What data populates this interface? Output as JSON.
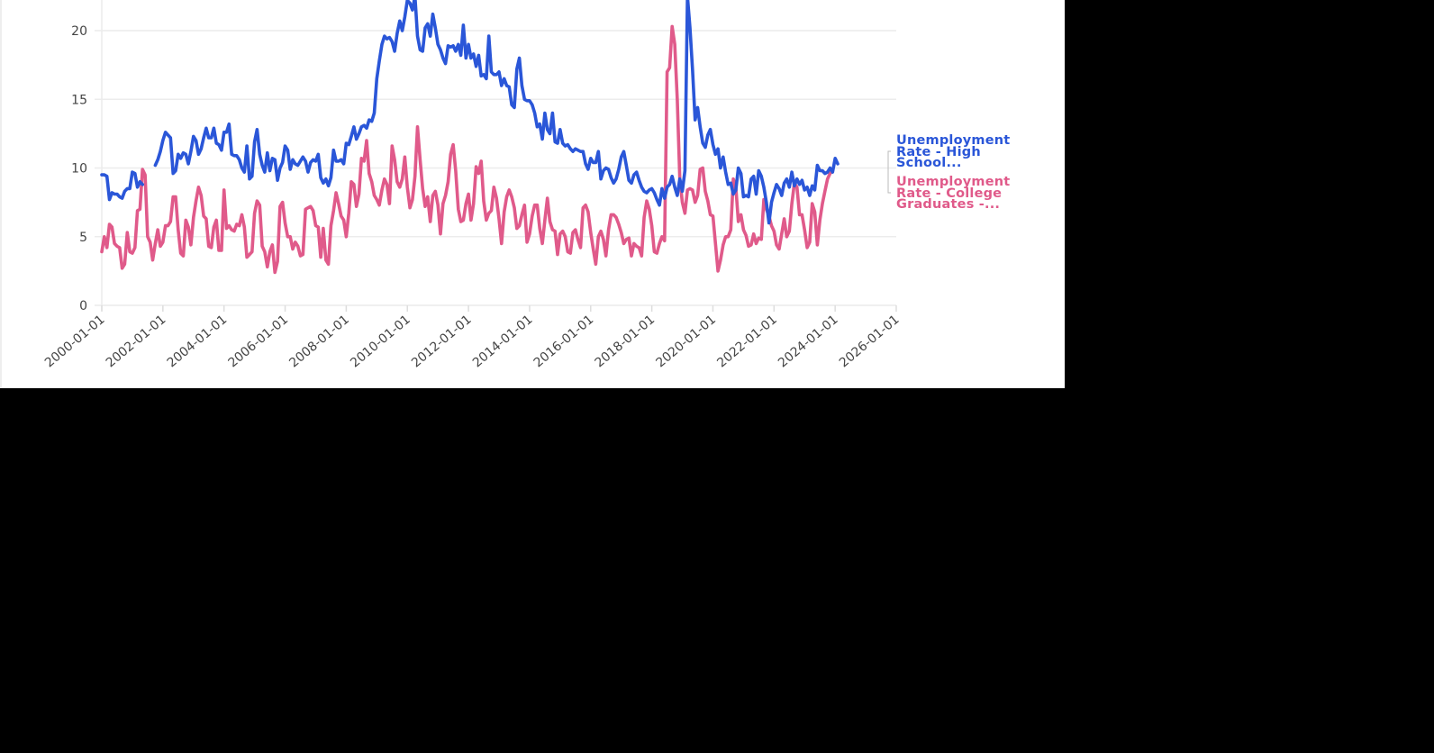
{
  "chart_data": {
    "type": "line",
    "title": "",
    "xlabel": "",
    "ylabel": "",
    "ylim": [
      0,
      22
    ],
    "yticks": [
      0,
      5,
      10,
      15,
      20
    ],
    "xticks": [
      "2000-01-01",
      "2002-01-01",
      "2004-01-01",
      "2006-01-01",
      "2008-01-01",
      "2010-01-01",
      "2012-01-01",
      "2014-01-01",
      "2016-01-01",
      "2018-01-01",
      "2020-01-01",
      "2022-01-01",
      "2024-01-01",
      "2026-01-01"
    ],
    "grid": "horizontal",
    "legend_position": "right-inline",
    "x_start": "2000-01",
    "x_frequency": "monthly",
    "series": [
      {
        "name": "Unemployment Rate - High School...",
        "color": "#2a56d8",
        "values": [
          9.5,
          9.5,
          9.4,
          7.7,
          8.2,
          8.1,
          8.1,
          7.9,
          7.8,
          8.3,
          8.5,
          8.5,
          9.7,
          9.6,
          8.6,
          9.0,
          8.8,
          null,
          null,
          null,
          null,
          10.2,
          10.6,
          11.2,
          12.0,
          12.6,
          12.4,
          12.2,
          9.6,
          9.8,
          11.0,
          10.7,
          11.1,
          11.0,
          10.3,
          11.2,
          12.3,
          12.0,
          11.0,
          11.4,
          12.2,
          12.9,
          12.2,
          12.2,
          12.9,
          11.8,
          11.7,
          11.3,
          12.6,
          12.6,
          13.2,
          11.0,
          10.9,
          10.9,
          10.6,
          10.0,
          9.7,
          11.6,
          9.2,
          9.4,
          11.9,
          12.8,
          11.0,
          10.2,
          9.7,
          11.1,
          9.8,
          10.7,
          10.6,
          9.1,
          10.0,
          10.4,
          11.6,
          11.3,
          9.9,
          10.6,
          10.3,
          10.2,
          10.5,
          10.8,
          10.5,
          9.7,
          10.4,
          10.6,
          10.5,
          11.0,
          9.3,
          8.9,
          9.2,
          8.7,
          9.3,
          11.3,
          10.5,
          10.5,
          10.6,
          10.3,
          11.8,
          11.7,
          12.3,
          13.0,
          12.1,
          12.5,
          13.0,
          13.1,
          12.9,
          13.5,
          13.4,
          14.0,
          16.5,
          17.8,
          19.0,
          19.6,
          19.4,
          19.5,
          19.2,
          18.5,
          19.8,
          20.7,
          20.0,
          21.0,
          22.2,
          22.0,
          21.5,
          22.5,
          19.6,
          18.6,
          18.5,
          20.2,
          20.5,
          19.6,
          21.2,
          20.2,
          19.0,
          18.6,
          18.0,
          17.6,
          18.9,
          18.8,
          18.9,
          18.5,
          19.0,
          18.2,
          20.4,
          18.0,
          19.0,
          18.0,
          18.3,
          17.4,
          18.2,
          16.7,
          16.8,
          16.5,
          19.6,
          17.0,
          16.8,
          16.8,
          17.0,
          16.0,
          16.5,
          16.0,
          15.9,
          14.6,
          14.4,
          17.2,
          18.0,
          16.0,
          15.0,
          14.9,
          14.9,
          14.6,
          14.0,
          13.0,
          13.2,
          12.1,
          14.0,
          12.8,
          12.5,
          14.0,
          11.9,
          11.8,
          12.8,
          11.8,
          11.6,
          11.7,
          11.4,
          11.2,
          11.4,
          11.3,
          11.2,
          11.2,
          10.3,
          9.9,
          10.7,
          10.4,
          10.4,
          11.2,
          9.2,
          9.8,
          10.0,
          9.9,
          9.3,
          8.9,
          9.2,
          9.9,
          10.8,
          11.2,
          10.2,
          9.1,
          8.9,
          9.5,
          9.7,
          9.1,
          8.6,
          8.3,
          8.2,
          8.4,
          8.5,
          8.2,
          7.7,
          7.3,
          8.5,
          7.8,
          8.6,
          8.8,
          9.4,
          8.6,
          8.0,
          9.2,
          8.3,
          9.8,
          22.5,
          20.2,
          17.2,
          13.5,
          14.4,
          13.0,
          11.8,
          11.5,
          12.4,
          12.8,
          11.7,
          11.0,
          11.4,
          10.0,
          10.8,
          9.7,
          8.8,
          8.9,
          8.1,
          8.4,
          10.0,
          9.6,
          7.9,
          8.0,
          7.9,
          9.2,
          9.4,
          8.1,
          9.8,
          9.4,
          8.6,
          7.5,
          6.0,
          7.5,
          8.2,
          8.8,
          8.5,
          8.0,
          8.9,
          9.2,
          8.6,
          9.7,
          8.7,
          9.2,
          8.8,
          9.1,
          8.4,
          8.6,
          8.0,
          8.7,
          8.4,
          10.2,
          9.8,
          9.8,
          9.6,
          9.7,
          10.0,
          9.7,
          10.7,
          10.3
        ]
      },
      {
        "name": "Unemployment Rate - College Graduates -...",
        "color": "#e05a8a",
        "values": [
          3.9,
          5.0,
          4.2,
          5.9,
          5.7,
          4.5,
          4.3,
          4.2,
          2.7,
          3.0,
          5.3,
          3.9,
          3.8,
          4.2,
          6.9,
          7.0,
          9.9,
          9.5,
          5.0,
          4.6,
          3.3,
          4.5,
          5.5,
          4.3,
          4.6,
          5.8,
          5.8,
          6.1,
          7.9,
          7.9,
          5.5,
          3.8,
          3.6,
          6.2,
          5.7,
          4.4,
          6.4,
          7.6,
          8.6,
          8.0,
          6.5,
          6.3,
          4.3,
          4.2,
          5.7,
          6.2,
          4.0,
          4.0,
          8.4,
          5.6,
          5.8,
          5.5,
          5.4,
          5.9,
          5.8,
          6.6,
          5.7,
          3.5,
          3.7,
          3.9,
          6.7,
          7.6,
          7.3,
          4.3,
          3.9,
          2.8,
          3.9,
          4.4,
          2.4,
          3.2,
          7.2,
          7.5,
          6.0,
          5.0,
          5.0,
          4.1,
          4.6,
          4.3,
          3.6,
          3.7,
          7.0,
          7.1,
          7.2,
          6.9,
          5.8,
          5.7,
          3.5,
          5.6,
          3.3,
          3.0,
          5.8,
          6.9,
          8.2,
          7.4,
          6.5,
          6.2,
          5.0,
          6.7,
          9.0,
          8.8,
          7.2,
          8.1,
          10.7,
          10.5,
          12.0,
          9.6,
          9.0,
          8.0,
          7.7,
          7.3,
          8.4,
          9.2,
          8.8,
          7.4,
          11.6,
          10.6,
          9.0,
          8.6,
          9.2,
          10.8,
          8.6,
          7.1,
          7.7,
          9.4,
          13.0,
          10.6,
          8.5,
          7.2,
          7.9,
          6.1,
          8.0,
          8.3,
          7.3,
          5.2,
          7.4,
          8.0,
          9.0,
          11.0,
          11.7,
          9.8,
          7.0,
          6.1,
          6.2,
          7.4,
          8.1,
          6.2,
          7.4,
          10.1,
          9.6,
          10.5,
          7.6,
          6.2,
          6.7,
          6.9,
          8.6,
          7.8,
          6.3,
          4.5,
          6.8,
          7.9,
          8.4,
          7.9,
          7.1,
          5.6,
          5.8,
          6.6,
          7.3,
          4.6,
          5.2,
          6.5,
          7.3,
          7.3,
          5.6,
          4.5,
          6.2,
          7.8,
          6.1,
          5.5,
          5.4,
          3.7,
          5.2,
          5.4,
          5.0,
          3.9,
          3.8,
          5.3,
          5.5,
          4.8,
          4.2,
          7.1,
          7.3,
          6.8,
          5.3,
          4.1,
          3.0,
          5.0,
          5.4,
          4.8,
          3.6,
          5.5,
          6.6,
          6.6,
          6.4,
          5.9,
          5.3,
          4.5,
          4.8,
          4.9,
          3.6,
          4.5,
          4.3,
          4.2,
          3.6,
          6.4,
          7.6,
          7.0,
          5.8,
          3.9,
          3.8,
          4.5,
          5.0,
          4.7,
          17.0,
          17.3,
          20.3,
          19.0,
          15.0,
          9.2,
          7.5,
          6.7,
          8.4,
          8.5,
          8.4,
          7.5,
          8.0,
          9.9,
          10.0,
          8.3,
          7.6,
          6.6,
          6.5,
          4.5,
          2.5,
          3.3,
          4.4,
          5.0,
          5.0,
          5.5,
          9.2,
          8.6,
          6.1,
          6.6,
          5.5,
          5.1,
          4.3,
          4.4,
          5.2,
          4.5,
          4.9,
          4.8,
          7.7,
          7.0,
          6.5,
          5.8,
          5.4,
          4.4,
          4.1,
          5.2,
          6.3,
          5.0,
          5.4,
          7.4,
          8.9,
          8.6,
          6.6,
          6.6,
          5.5,
          4.2,
          4.6,
          7.4,
          6.8,
          4.4,
          6.2,
          7.4,
          8.3,
          9.2,
          9.6,
          9.8
        ]
      }
    ]
  },
  "legend": {
    "high_school": {
      "line1": "Unemployment",
      "line2": "Rate - High",
      "line3": "School..."
    },
    "college": {
      "line1": "Unemployment",
      "line2": "Rate - College",
      "line3": "Graduates -..."
    }
  }
}
